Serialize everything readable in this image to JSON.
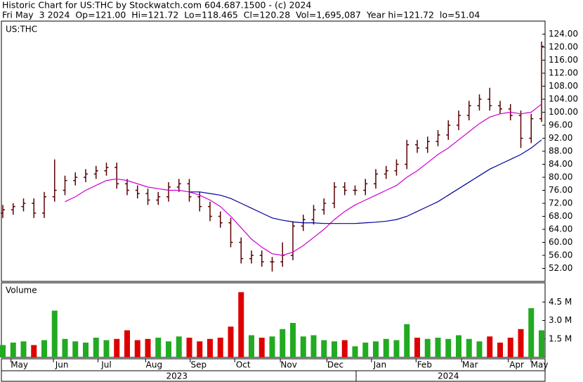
{
  "header": {
    "title": "Historic Chart for US:THC by Stockwatch.com 604.687.1500 - (c) 2024",
    "quote": "Fri May  3 2024  Op=121.00  Hi=121.72  Lo=118.465  Cl=120.28  Vol=1,695,087  Year hi=121.72  lo=51.04"
  },
  "chart_data": {
    "type": "ohlc",
    "symbol": "US:THC",
    "bar_color": "#5a0000",
    "categories": [
      null,
      null,
      null,
      null,
      null,
      null,
      null,
      null,
      null,
      null,
      null,
      null,
      null,
      null,
      null,
      null,
      null,
      null,
      null,
      null,
      null,
      null,
      null,
      null,
      null,
      null,
      null,
      null,
      null,
      null,
      null,
      null,
      null,
      null,
      null,
      null,
      null,
      null,
      null,
      null,
      null,
      null,
      null,
      null,
      null,
      null,
      null,
      null,
      null,
      null,
      null,
      null,
      null
    ],
    "open": [
      69,
      70,
      71,
      72,
      69,
      74,
      76,
      79,
      80,
      81,
      82,
      83,
      78,
      76,
      75,
      73,
      74,
      77,
      78,
      74,
      71,
      68,
      66,
      60,
      55,
      56,
      54,
      54,
      56,
      65,
      67,
      70,
      72,
      77,
      76,
      76,
      78,
      81,
      82,
      84,
      90,
      89,
      91,
      93,
      96,
      99,
      102,
      104,
      102,
      101,
      99,
      92,
      98
    ],
    "high": [
      71.5,
      72,
      73.5,
      73.5,
      75.5,
      85.5,
      80.5,
      81.5,
      82.5,
      83.5,
      84.5,
      84.5,
      79.5,
      77.5,
      76.5,
      75.5,
      78.5,
      79.5,
      79.5,
      75.5,
      72.5,
      69.5,
      67.5,
      61.5,
      57.5,
      57.5,
      55.5,
      60,
      66.5,
      68.5,
      71.5,
      73.5,
      78.5,
      78.5,
      77.5,
      79.5,
      82.5,
      83.5,
      85.5,
      91.5,
      91.5,
      92.5,
      94.5,
      97.5,
      100.5,
      103.5,
      105.5,
      107.5,
      103.5,
      102.5,
      100.5,
      99.5,
      121.72
    ],
    "low": [
      67.5,
      68.5,
      69.5,
      67.5,
      67.5,
      72.5,
      74.5,
      77.5,
      78.5,
      79.5,
      80.5,
      76.5,
      74.5,
      73.5,
      71.5,
      71.5,
      72.5,
      75.5,
      72.5,
      69.5,
      66.5,
      64.5,
      58.5,
      53.5,
      53.5,
      52.5,
      51.04,
      52.5,
      54.5,
      63.5,
      65.5,
      68.5,
      70.5,
      74.5,
      74.5,
      74.5,
      76.5,
      79.5,
      80.5,
      82.5,
      87.5,
      87.5,
      89.5,
      91.5,
      94.5,
      97.5,
      100.5,
      100.5,
      99.5,
      97.5,
      89,
      90.5,
      97
    ],
    "close": [
      70,
      71,
      72,
      69,
      74,
      76,
      79,
      80,
      81,
      82,
      83,
      78,
      76,
      75,
      73,
      74,
      77,
      78,
      74,
      71,
      68,
      66,
      60,
      55,
      56,
      54,
      54,
      56,
      65,
      67,
      70,
      72,
      77,
      76,
      76,
      78,
      81,
      82,
      84,
      90,
      89,
      91,
      93,
      96,
      99,
      102,
      104,
      102,
      101,
      99,
      92,
      98,
      120.28
    ],
    "ylim": [
      48,
      128
    ],
    "yticks": [
      {
        "value": 52,
        "label": "52.00"
      },
      {
        "value": 56,
        "label": "56.00"
      },
      {
        "value": 60,
        "label": "60.00"
      },
      {
        "value": 64,
        "label": "64.00"
      },
      {
        "value": 68,
        "label": "68.00"
      },
      {
        "value": 72,
        "label": "72.00"
      },
      {
        "value": 76,
        "label": "76.00"
      },
      {
        "value": 80,
        "label": "80.00"
      },
      {
        "value": 84,
        "label": "84.00"
      },
      {
        "value": 88,
        "label": "88.00"
      },
      {
        "value": 92,
        "label": "92.00"
      },
      {
        "value": 96,
        "label": "96.00"
      },
      {
        "value": 100,
        "label": "100.00"
      },
      {
        "value": 104,
        "label": "104.00"
      },
      {
        "value": 108,
        "label": "108.00"
      },
      {
        "value": 112,
        "label": "112.00"
      },
      {
        "value": 116,
        "label": "116.00"
      },
      {
        "value": 120,
        "label": "120.00"
      },
      {
        "value": 124,
        "label": "124.00"
      }
    ],
    "moving_averages": [
      {
        "color": "#cc00cc",
        "values": [
          null,
          null,
          null,
          null,
          null,
          null,
          72.5,
          74,
          76,
          77.5,
          79,
          79.5,
          79,
          78,
          77,
          76.5,
          76,
          76,
          75.5,
          74.5,
          73,
          71,
          68,
          64.5,
          61,
          58.5,
          56.5,
          56,
          57,
          59,
          61.5,
          64,
          67,
          69.5,
          71.5,
          73,
          74.5,
          76,
          77.5,
          80,
          82,
          84.5,
          87,
          89,
          91.5,
          94,
          96.5,
          98.5,
          99.5,
          100,
          99.5,
          100,
          102.5
        ]
      },
      {
        "color": "#000099",
        "values": [
          null,
          null,
          null,
          null,
          null,
          null,
          null,
          null,
          null,
          null,
          null,
          null,
          null,
          null,
          null,
          null,
          null,
          null,
          75.5,
          75.5,
          75,
          74.5,
          73.5,
          72,
          70.5,
          69,
          67.5,
          66.8,
          66.3,
          66,
          66,
          65.8,
          65.8,
          65.8,
          65.8,
          66,
          66.2,
          66.5,
          67,
          68,
          69.5,
          71,
          72.5,
          74.5,
          76.5,
          78.5,
          80.5,
          82.5,
          84,
          85.5,
          87,
          89,
          91.5
        ]
      }
    ],
    "volume": {
      "title": "Volume",
      "up_color": "#22aa22",
      "down_color": "#dd0000",
      "values": [
        1.0,
        1.2,
        1.3,
        1.0,
        1.4,
        3.8,
        1.5,
        1.3,
        1.2,
        1.6,
        1.4,
        1.5,
        2.2,
        1.4,
        1.5,
        1.6,
        1.3,
        1.7,
        1.6,
        1.3,
        1.5,
        1.6,
        2.5,
        5.3,
        1.8,
        1.6,
        1.7,
        2.3,
        2.8,
        1.7,
        1.8,
        1.4,
        1.3,
        1.4,
        0.9,
        1.2,
        1.3,
        1.5,
        1.4,
        2.7,
        1.6,
        1.5,
        1.6,
        1.5,
        1.8,
        1.5,
        1.3,
        1.7,
        1.2,
        1.6,
        2.3,
        4.0,
        2.2
      ],
      "ylim": [
        0,
        6.06
      ],
      "yticks": [
        {
          "value": 1.5,
          "label": "1.5 M"
        },
        {
          "value": 3.0,
          "label": "3.0 M"
        },
        {
          "value": 4.5,
          "label": "4.5 M"
        }
      ]
    },
    "xticks": [
      {
        "value": 1.6,
        "label": "May"
      },
      {
        "value": 5.7,
        "label": "Jun"
      },
      {
        "value": 10,
        "label": "Jul"
      },
      {
        "value": 14.6,
        "label": "Aug"
      },
      {
        "value": 18.9,
        "label": "Sep"
      },
      {
        "value": 23.2,
        "label": "Oct"
      },
      {
        "value": 27.6,
        "label": "Nov"
      },
      {
        "value": 32.1,
        "label": "Dec"
      },
      {
        "value": 36.4,
        "label": "Jan"
      },
      {
        "value": 40.7,
        "label": "Feb"
      },
      {
        "value": 45.1,
        "label": "Mar"
      },
      {
        "value": 49.6,
        "label": "Apr"
      },
      {
        "value": 51.8,
        "label": "May"
      }
    ],
    "years": [
      {
        "value": 16.8,
        "label": "2023"
      },
      {
        "value": 43,
        "label": "2024"
      }
    ]
  }
}
